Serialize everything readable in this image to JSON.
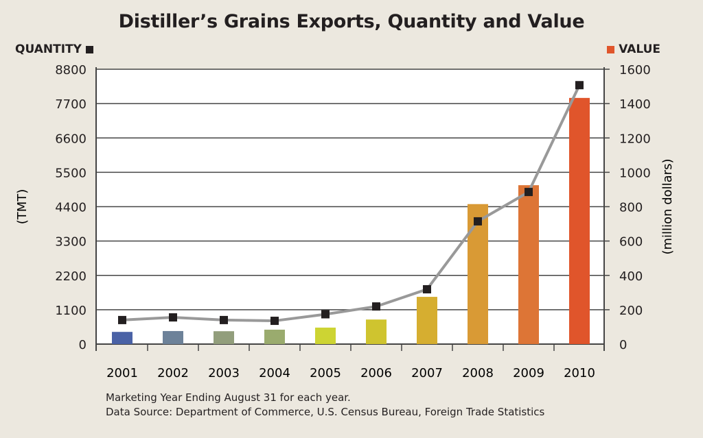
{
  "chart_data": {
    "type": "bar+line",
    "title": "Distiller’s Grains Exports, Quantity and Value",
    "categories": [
      "2001",
      "2002",
      "2003",
      "2004",
      "2005",
      "2006",
      "2007",
      "2008",
      "2009",
      "2010"
    ],
    "series": [
      {
        "name": "QUANTITY",
        "type": "line",
        "axis": "left",
        "values": [
          770,
          855,
          770,
          745,
          955,
          1205,
          1755,
          3930,
          4870,
          8290
        ],
        "color": "#231f20",
        "line_color": "#999999"
      },
      {
        "name": "VALUE",
        "type": "bar",
        "axis": "right",
        "values": [
          71,
          76,
          75,
          84,
          96,
          143,
          275,
          815,
          925,
          1433
        ],
        "colors": [
          "#4a62a6",
          "#6d8299",
          "#929e7c",
          "#9aab6e",
          "#cdd433",
          "#cfc42f",
          "#d6ae30",
          "#d99a35",
          "#dd7536",
          "#e0552b"
        ]
      }
    ],
    "left_axis": {
      "label": "(TMT)",
      "range": [
        0,
        8800
      ],
      "ticks": [
        "0",
        "1100",
        "2200",
        "3300",
        "4400",
        "5500",
        "6600",
        "7700",
        "8800"
      ]
    },
    "right_axis": {
      "label": "(million dollars)",
      "range": [
        0,
        1600
      ],
      "ticks": [
        "0",
        "200",
        "400",
        "600",
        "800",
        "1000",
        "1200",
        "1400",
        "1600"
      ]
    },
    "grid": true,
    "legend": {
      "left": "QUANTITY",
      "right": "VALUE",
      "left_color": "#231f20",
      "right_color": "#e0552b"
    },
    "notes": [
      "Marketing Year Ending August 31 for each year.",
      "Data Source: Department of Commerce, U.S. Census Bureau, Foreign Trade Statistics"
    ]
  }
}
